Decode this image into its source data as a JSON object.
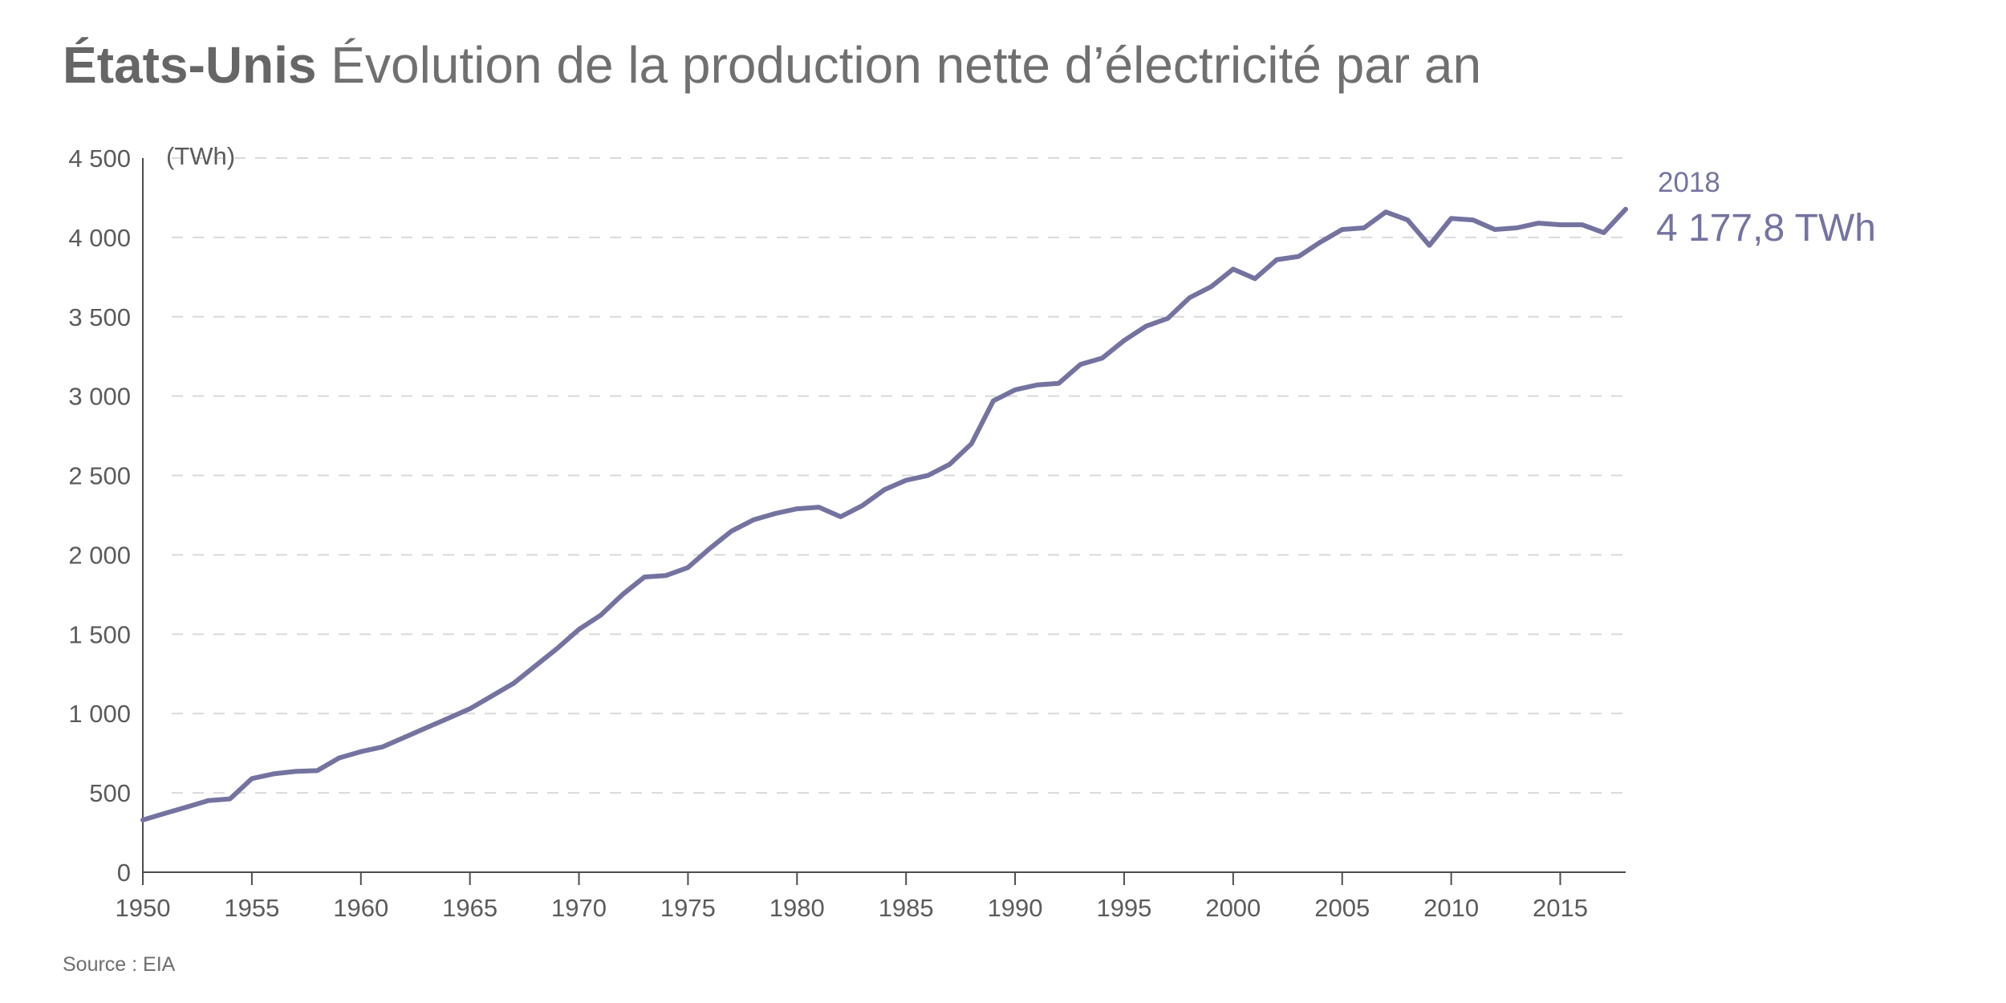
{
  "title": {
    "country": "États-Unis",
    "subtitle": "Évolution de la production nette d’électricité par an"
  },
  "source": "Source : EIA",
  "colors": {
    "line": "#7473a0",
    "grid": "#d9d9d9",
    "axis": "#4d4d4d",
    "text": "#5b5b5b"
  },
  "chart_data": {
    "type": "line",
    "title": "Évolution de la production nette d’électricité par an",
    "unit_label": "(TWh)",
    "xlabel": "",
    "ylabel": "TWh",
    "xlim": [
      1950,
      2018
    ],
    "ylim": [
      0,
      4500
    ],
    "grid": true,
    "legend": "none",
    "x_ticks": [
      1950,
      1955,
      1960,
      1965,
      1970,
      1975,
      1980,
      1985,
      1990,
      1995,
      2000,
      2005,
      2010,
      2015
    ],
    "y_ticks": [
      0,
      500,
      1000,
      1500,
      2000,
      2500,
      3000,
      3500,
      4000,
      4500
    ],
    "y_tick_labels": [
      "0",
      "500",
      "1 000",
      "1 500",
      "2 000",
      "2 500",
      "3 000",
      "3 500",
      "4 000",
      "4 500"
    ],
    "series": [
      {
        "name": "Production nette d’électricité",
        "x": [
          1950,
          1951,
          1952,
          1953,
          1954,
          1955,
          1956,
          1957,
          1958,
          1959,
          1960,
          1961,
          1962,
          1963,
          1964,
          1965,
          1966,
          1967,
          1968,
          1969,
          1970,
          1971,
          1972,
          1973,
          1974,
          1975,
          1976,
          1977,
          1978,
          1979,
          1980,
          1981,
          1982,
          1983,
          1984,
          1985,
          1986,
          1987,
          1988,
          1989,
          1990,
          1991,
          1992,
          1993,
          1994,
          1995,
          1996,
          1997,
          1998,
          1999,
          2000,
          2001,
          2002,
          2003,
          2004,
          2005,
          2006,
          2007,
          2008,
          2009,
          2010,
          2011,
          2012,
          2013,
          2014,
          2015,
          2016,
          2017,
          2018
        ],
        "values": [
          329,
          370,
          410,
          451,
          462,
          590,
          620,
          635,
          640,
          720,
          760,
          790,
          850,
          910,
          970,
          1030,
          1110,
          1190,
          1300,
          1410,
          1530,
          1620,
          1750,
          1860,
          1870,
          1920,
          2040,
          2150,
          2220,
          2260,
          2290,
          2300,
          2240,
          2310,
          2410,
          2470,
          2500,
          2570,
          2700,
          2970,
          3040,
          3070,
          3080,
          3200,
          3240,
          3350,
          3440,
          3490,
          3620,
          3690,
          3800,
          3740,
          3860,
          3880,
          3970,
          4050,
          4060,
          4160,
          4110,
          3950,
          4120,
          4110,
          4050,
          4060,
          4090,
          4080,
          4080,
          4030,
          4177.8
        ]
      }
    ],
    "annotation": {
      "year_label": "2018",
      "value_label": "4 177,8 TWh"
    }
  }
}
